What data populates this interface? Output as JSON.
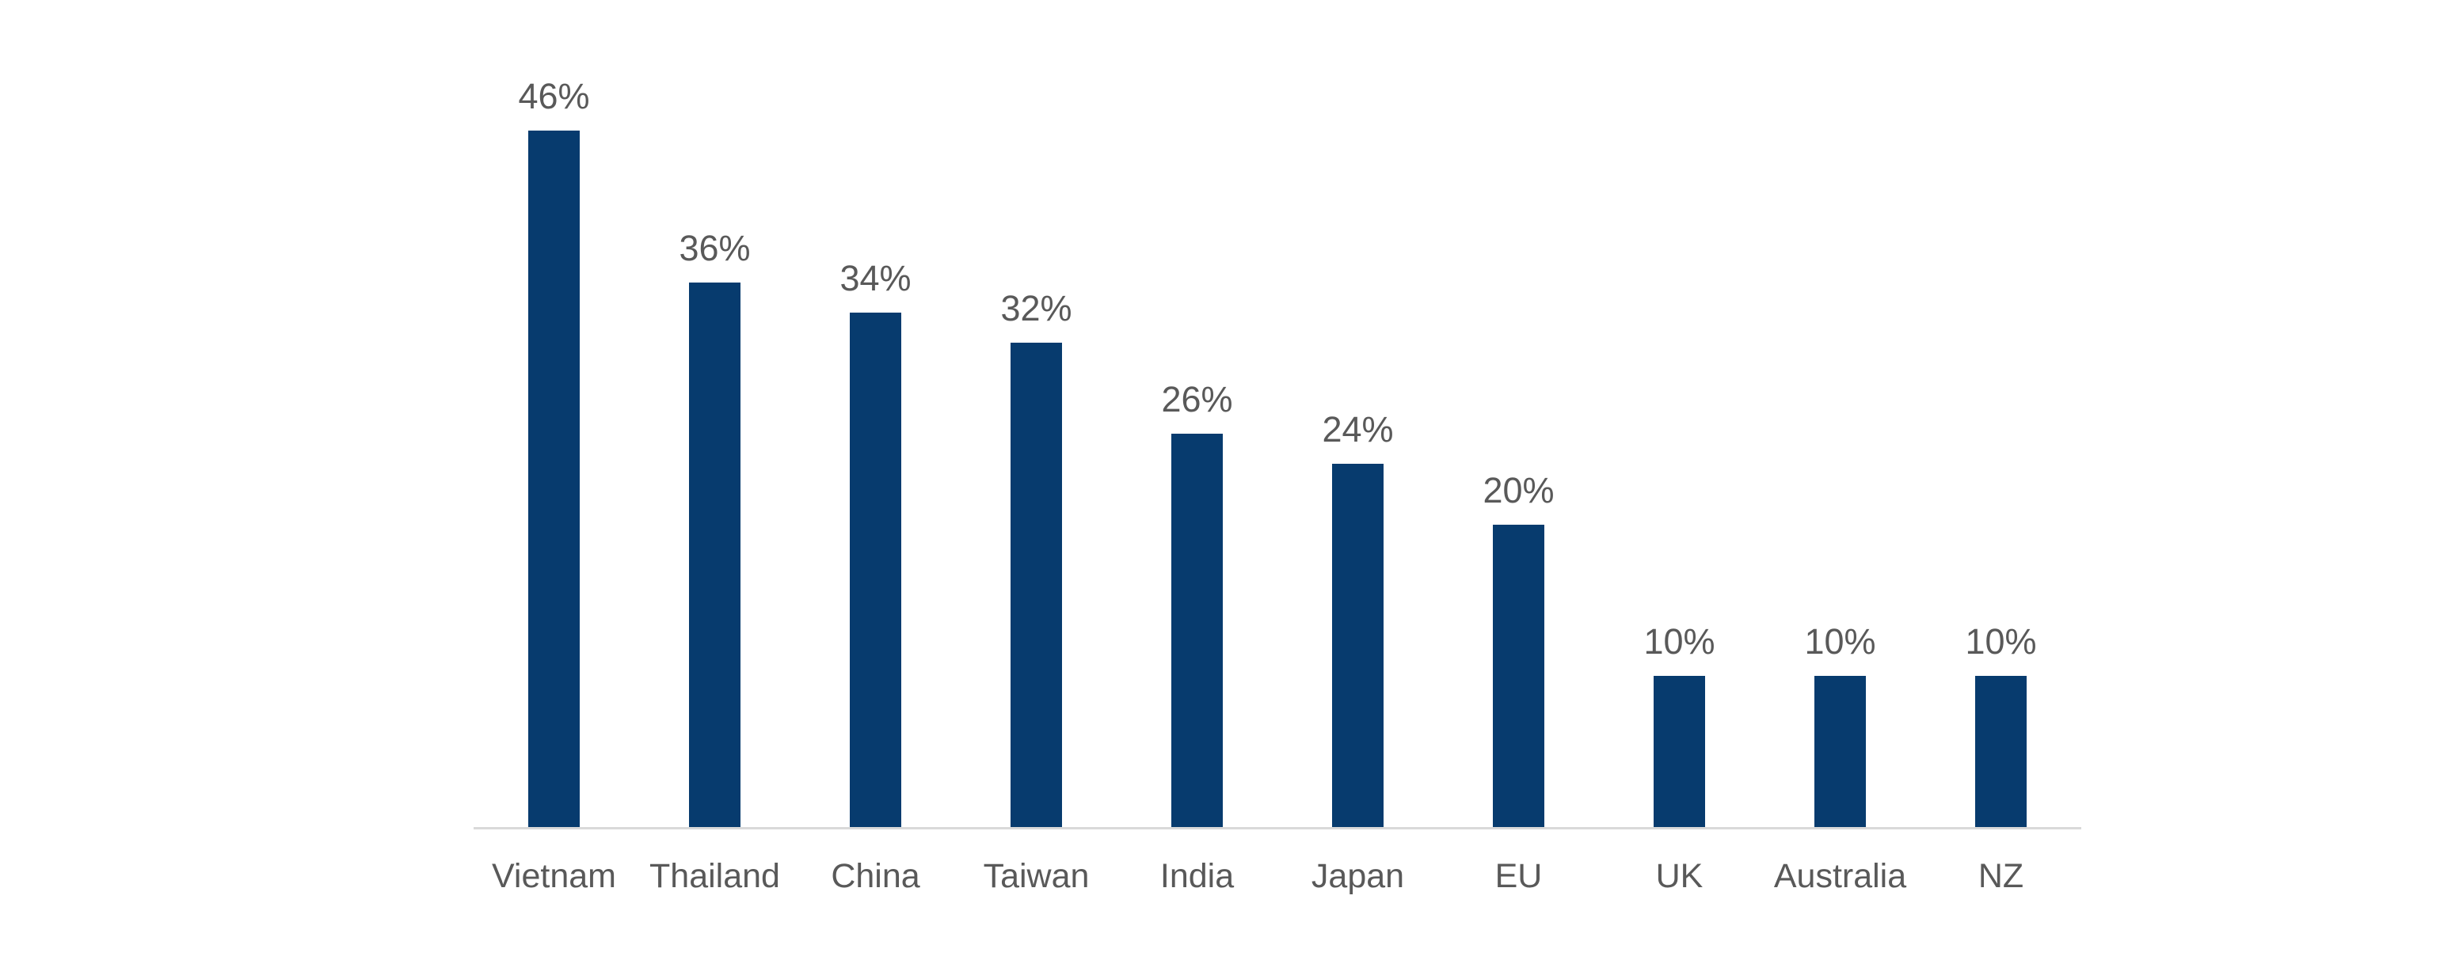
{
  "chart_data": {
    "type": "bar",
    "title": "",
    "xlabel": "",
    "ylabel": "",
    "categories": [
      "Vietnam",
      "Thailand",
      "China",
      "Taiwan",
      "India",
      "Japan",
      "EU",
      "UK",
      "Australia",
      "NZ"
    ],
    "values": [
      46,
      36,
      34,
      32,
      26,
      24,
      20,
      10,
      10,
      10
    ],
    "data_labels": [
      "46%",
      "36%",
      "34%",
      "32%",
      "26%",
      "24%",
      "20%",
      "10%",
      "10%",
      "10%"
    ],
    "unit": "percent",
    "ylim": [
      0,
      50
    ],
    "grid": false,
    "legend": "none",
    "y_axis_visible": false,
    "x_axis_line_visible": true,
    "colors": {
      "bar": "#073B6E",
      "data_label": "#595959",
      "category_label": "#595959",
      "axis_line": "#D9D9D9",
      "background": "#FFFFFF"
    }
  }
}
